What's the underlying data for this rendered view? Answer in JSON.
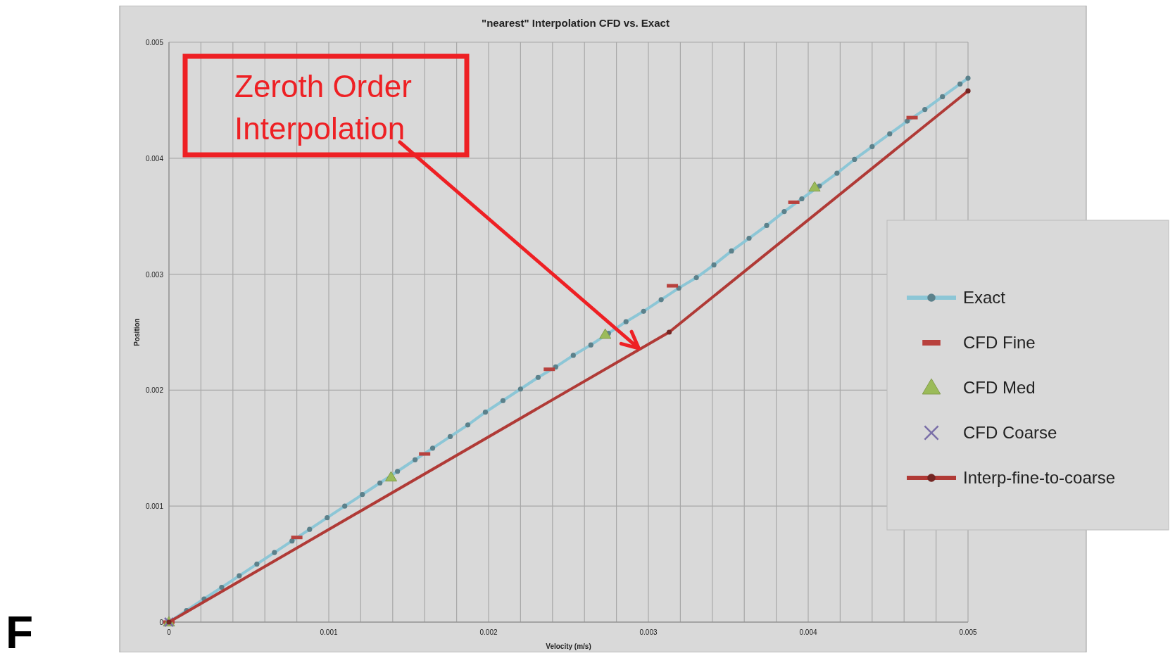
{
  "chart_data": {
    "type": "line",
    "title": "\"nearest\" Interpolation CFD vs. Exact",
    "xlabel": "Velocity (m/s)",
    "ylabel": "Position",
    "xlim": [
      0,
      0.005
    ],
    "ylim": [
      0,
      0.005
    ],
    "xticks": [
      0,
      {
        "value": 0.0002,
        "label": null
      },
      {
        "value": 0.0004,
        "label": null
      },
      {
        "value": 0.0006,
        "label": null
      },
      {
        "value": 0.0008,
        "label": null
      },
      0.001,
      {
        "value": 0.0012,
        "label": null
      },
      {
        "value": 0.0014,
        "label": null
      },
      {
        "value": 0.0016,
        "label": null
      },
      {
        "value": 0.0018,
        "label": null
      },
      0.002,
      {
        "value": 0.0022,
        "label": null
      },
      {
        "value": 0.0024,
        "label": null
      },
      {
        "value": 0.0026,
        "label": null
      },
      {
        "value": 0.0028,
        "label": null
      },
      0.003,
      {
        "value": 0.0032,
        "label": null
      },
      {
        "value": 0.0034,
        "label": null
      },
      {
        "value": 0.0036,
        "label": null
      },
      {
        "value": 0.0038,
        "label": null
      },
      0.004,
      {
        "value": 0.0042,
        "label": null
      },
      {
        "value": 0.0044,
        "label": null
      },
      {
        "value": 0.0046,
        "label": null
      },
      {
        "value": 0.0048,
        "label": null
      },
      0.005
    ],
    "yticks": [
      0,
      0.001,
      0.002,
      0.003,
      0.004,
      0.005
    ],
    "grid": true,
    "legend": "right",
    "series": [
      {
        "name": "Exact",
        "marker": "circle",
        "color": "#8cc6d6",
        "x": [
          0,
          0.00011,
          0.00022,
          0.00033,
          0.00044,
          0.00055,
          0.00066,
          0.00077,
          0.00088,
          0.00099,
          0.0011,
          0.00121,
          0.00132,
          0.00143,
          0.00154,
          0.00165,
          0.00176,
          0.00187,
          0.00198,
          0.00209,
          0.0022,
          0.00231,
          0.00242,
          0.00253,
          0.00264,
          0.00275,
          0.00286,
          0.00297,
          0.00308,
          0.00319,
          0.0033,
          0.00341,
          0.00352,
          0.00363,
          0.00374,
          0.00385,
          0.00396,
          0.00407,
          0.00418,
          0.00429,
          0.0044,
          0.00451,
          0.00462,
          0.00473,
          0.00484,
          0.00495,
          0.005
        ],
        "values": [
          0,
          0.0001,
          0.0002,
          0.0003,
          0.0004,
          0.0005,
          0.0006,
          0.0007,
          0.0008,
          0.0009,
          0.001,
          0.0011,
          0.0012,
          0.0013,
          0.0014,
          0.0015,
          0.0016,
          0.0017,
          0.00181,
          0.00191,
          0.00201,
          0.00211,
          0.0022,
          0.0023,
          0.00239,
          0.00249,
          0.00259,
          0.00268,
          0.00278,
          0.00288,
          0.00297,
          0.00308,
          0.0032,
          0.00331,
          0.00342,
          0.00354,
          0.00365,
          0.00376,
          0.00387,
          0.00399,
          0.0041,
          0.00421,
          0.00432,
          0.00442,
          0.00453,
          0.00464,
          0.00469
        ]
      },
      {
        "name": "CFD Fine",
        "type": "scatter",
        "marker": "square",
        "color": "#b8413d",
        "x": [
          0,
          0.0008,
          0.0016,
          0.00238,
          0.00315,
          0.00391,
          0.00465
        ],
        "values": [
          0,
          0.00073,
          0.00145,
          0.00218,
          0.0029,
          0.00362,
          0.00435
        ]
      },
      {
        "name": "CFD Med",
        "type": "scatter",
        "marker": "triangle",
        "color": "#9bbb59",
        "x": [
          0,
          0.00139,
          0.00273,
          0.00404
        ],
        "values": [
          0,
          0.00125,
          0.00248,
          0.00375
        ]
      },
      {
        "name": "CFD Coarse",
        "type": "scatter",
        "marker": "cross",
        "color": "#7a6fa8",
        "x": [
          0
        ],
        "values": [
          0
        ]
      },
      {
        "name": "Interp-fine-to-coarse",
        "marker": "circle",
        "color": "#b03a36",
        "x": [
          0,
          0.00313,
          0.005
        ],
        "values": [
          0,
          0.0025,
          0.00458
        ]
      }
    ],
    "annotations": [
      {
        "text": "Zeroth Order\nInterpolation",
        "x": 0.00294,
        "y": 0.00236
      },
      "F"
    ]
  }
}
